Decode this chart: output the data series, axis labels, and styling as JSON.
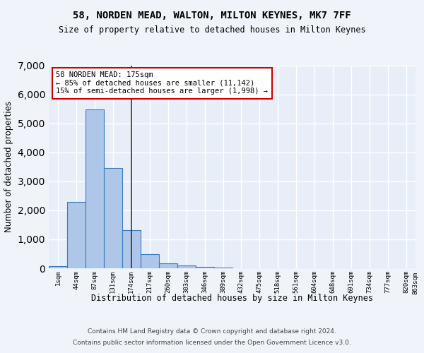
{
  "title": "58, NORDEN MEAD, WALTON, MILTON KEYNES, MK7 7FF",
  "subtitle": "Size of property relative to detached houses in Milton Keynes",
  "xlabel": "Distribution of detached houses by size in Milton Keynes",
  "ylabel": "Number of detached properties",
  "bar_values": [
    75,
    2280,
    5480,
    3460,
    1310,
    480,
    170,
    90,
    55,
    20,
    8,
    4,
    2,
    1,
    1,
    0,
    0,
    0,
    0,
    0
  ],
  "bin_labels": [
    "1sqm",
    "44sqm",
    "87sqm",
    "131sqm",
    "174sqm",
    "217sqm",
    "260sqm",
    "303sqm",
    "346sqm",
    "389sqm",
    "432sqm",
    "475sqm",
    "518sqm",
    "561sqm",
    "604sqm",
    "648sqm",
    "691sqm",
    "734sqm",
    "777sqm",
    "820sqm"
  ],
  "bar_color": "#aec6e8",
  "bar_edge_color": "#3a7abf",
  "background_color": "#e8eef7",
  "grid_color": "#ffffff",
  "vline_x": 4,
  "vline_color": "#333333",
  "annotation_line1": "58 NORDEN MEAD: 175sqm",
  "annotation_line2": "← 85% of detached houses are smaller (11,142)",
  "annotation_line3": "15% of semi-detached houses are larger (1,998) →",
  "annotation_box_color": "#ffffff",
  "annotation_box_edge_color": "#cc0000",
  "ylim": [
    0,
    7000
  ],
  "footer_line1": "Contains HM Land Registry data © Crown copyright and database right 2024.",
  "footer_line2": "Contains public sector information licensed under the Open Government Licence v3.0.",
  "yticks": [
    0,
    1000,
    2000,
    3000,
    4000,
    5000,
    6000,
    7000
  ],
  "extra_tick_label": "863sqm"
}
